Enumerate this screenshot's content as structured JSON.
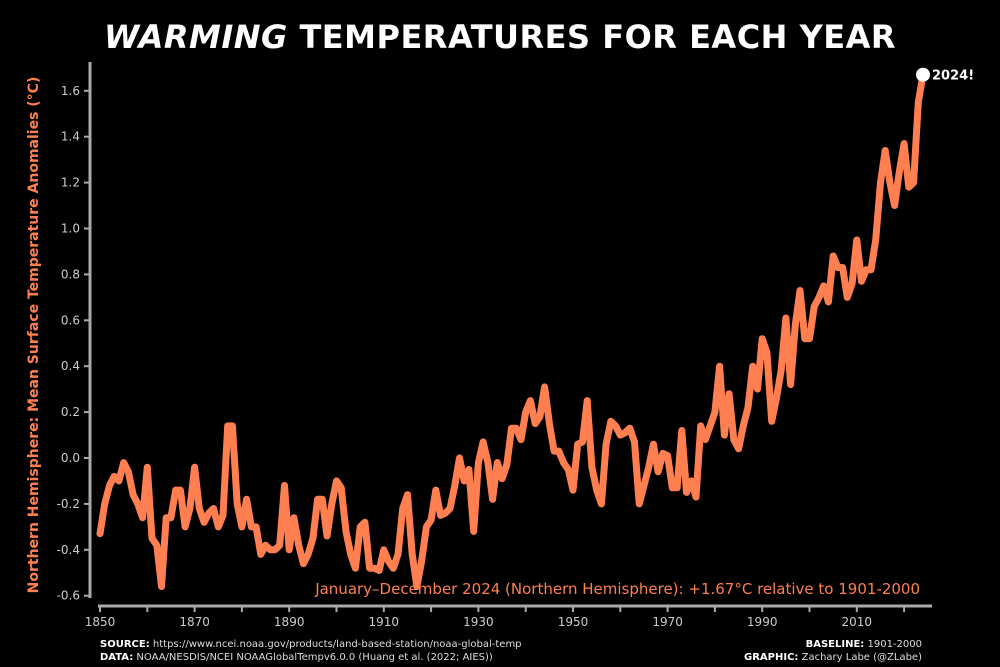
{
  "title": {
    "emphasis": "WARMING",
    "rest": "TEMPERATURES FOR EACH YEAR"
  },
  "colors": {
    "line": "#ff7f50",
    "axis": "#aaaaaa",
    "marker": "#ffffff",
    "background": "#000000"
  },
  "chart_data": {
    "type": "line",
    "ylabel": "Northern Hemisphere: Mean Surface Temperature Anomalies (°C)",
    "xlim": [
      1850,
      2024
    ],
    "ylim": [
      -0.6,
      1.7
    ],
    "xticks": [
      1850,
      1870,
      1890,
      1910,
      1930,
      1950,
      1970,
      1990,
      2010
    ],
    "yticks": [
      "-0.6",
      "-0.4",
      "-0.2",
      "0.0",
      "0.2",
      "0.4",
      "0.6",
      "0.8",
      "1.0",
      "1.2",
      "1.4",
      "1.6"
    ],
    "grid": false,
    "x_start": 1850,
    "values": [
      -0.33,
      -0.2,
      -0.12,
      -0.08,
      -0.1,
      -0.02,
      -0.06,
      -0.16,
      -0.2,
      -0.26,
      -0.04,
      -0.35,
      -0.38,
      -0.56,
      -0.26,
      -0.26,
      -0.14,
      -0.14,
      -0.3,
      -0.22,
      -0.04,
      -0.22,
      -0.28,
      -0.24,
      -0.22,
      -0.3,
      -0.25,
      0.14,
      0.14,
      -0.2,
      -0.3,
      -0.18,
      -0.3,
      -0.3,
      -0.42,
      -0.38,
      -0.4,
      -0.4,
      -0.38,
      -0.12,
      -0.4,
      -0.26,
      -0.38,
      -0.46,
      -0.42,
      -0.35,
      -0.18,
      -0.18,
      -0.34,
      -0.2,
      -0.1,
      -0.13,
      -0.32,
      -0.42,
      -0.48,
      -0.3,
      -0.28,
      -0.48,
      -0.48,
      -0.49,
      -0.4,
      -0.45,
      -0.48,
      -0.42,
      -0.22,
      -0.16,
      -0.42,
      -0.56,
      -0.45,
      -0.3,
      -0.27,
      -0.14,
      -0.25,
      -0.24,
      -0.22,
      -0.12,
      0.0,
      -0.1,
      -0.05,
      -0.32,
      -0.02,
      0.07,
      -0.02,
      -0.18,
      -0.02,
      -0.09,
      -0.03,
      0.13,
      0.13,
      0.08,
      0.2,
      0.25,
      0.15,
      0.18,
      0.31,
      0.15,
      0.03,
      0.03,
      -0.02,
      -0.05,
      -0.14,
      0.06,
      0.07,
      0.25,
      -0.04,
      -0.14,
      -0.2,
      0.06,
      0.16,
      0.14,
      0.1,
      0.11,
      0.13,
      0.07,
      -0.2,
      -0.12,
      -0.04,
      0.06,
      -0.06,
      0.02,
      0.01,
      -0.13,
      -0.13,
      0.12,
      -0.15,
      -0.1,
      -0.17,
      0.14,
      0.08,
      0.14,
      0.2,
      0.4,
      0.1,
      0.28,
      0.08,
      0.04,
      0.14,
      0.22,
      0.4,
      0.3,
      0.52,
      0.46,
      0.16,
      0.26,
      0.38,
      0.61,
      0.32,
      0.58,
      0.73,
      0.52,
      0.52,
      0.66,
      0.7,
      0.75,
      0.68,
      0.88,
      0.83,
      0.83,
      0.7,
      0.76,
      0.95,
      0.77,
      0.82,
      0.82,
      0.95,
      1.2,
      1.34,
      1.2,
      1.1,
      1.25,
      1.37,
      1.18,
      1.2,
      1.55,
      1.67
    ],
    "highlight": {
      "year": 2024,
      "value": 1.67,
      "label": "2024!"
    },
    "annotation": "January–December 2024 (Northern Hemisphere): +1.67°C relative to 1901-2000"
  },
  "footer": {
    "source_label": "SOURCE:",
    "source": "https://www.ncei.noaa.gov/products/land-based-station/noaa-global-temp",
    "data_label": "DATA:",
    "data": "NOAA/NESDIS/NCEI NOAAGlobalTempv6.0.0 (Huang et al. (2022; AIES))",
    "baseline_label": "BASELINE:",
    "baseline": "1901-2000",
    "graphic_label": "GRAPHIC:",
    "graphic": "Zachary Labe (@ZLabe)"
  }
}
